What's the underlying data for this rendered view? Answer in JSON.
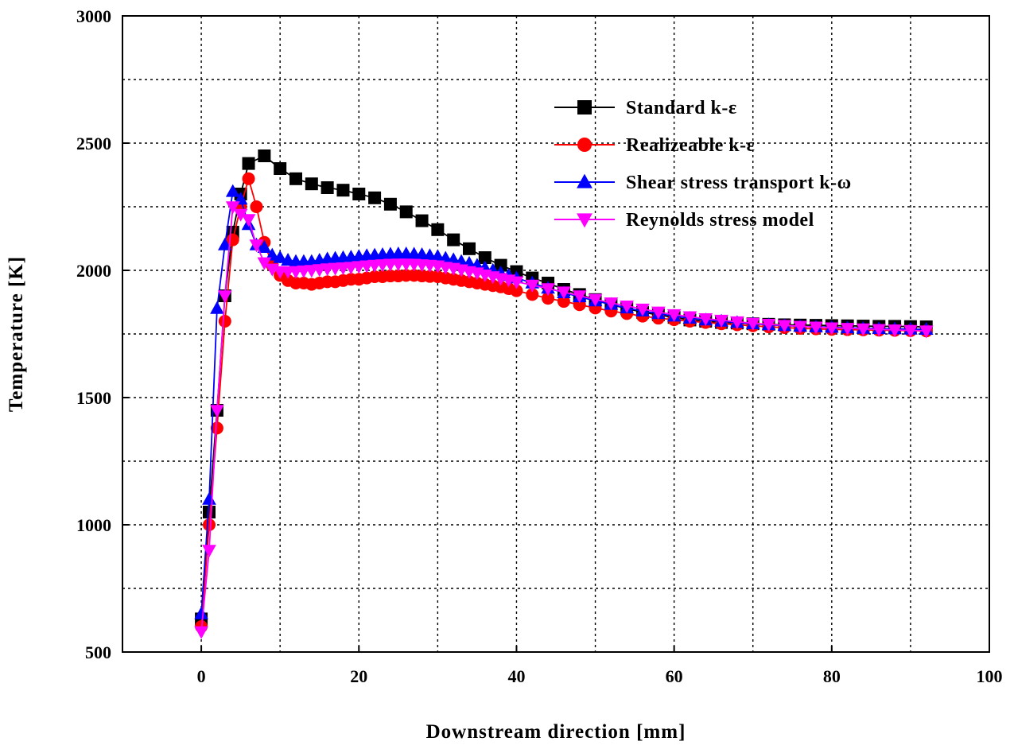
{
  "chart_data": {
    "type": "line",
    "title": "",
    "xlabel": "Downstream direction [mm]",
    "ylabel": "Temperature [K]",
    "xlim": [
      -10,
      100
    ],
    "ylim": [
      500,
      3000
    ],
    "xticks": [
      0,
      20,
      40,
      60,
      80,
      100
    ],
    "yticks": [
      500,
      1000,
      1500,
      2000,
      2500,
      3000
    ],
    "grid": true,
    "legend_position": "top-right",
    "series": [
      {
        "name": "Standard k-ε",
        "color": "#000000",
        "marker": "square",
        "x": [
          0,
          1,
          2,
          3,
          4,
          5,
          6,
          8,
          10,
          12,
          14,
          16,
          18,
          20,
          22,
          24,
          26,
          28,
          30,
          32,
          34,
          36,
          38,
          40,
          42,
          44,
          46,
          48,
          50,
          52,
          54,
          56,
          58,
          60,
          62,
          64,
          66,
          68,
          70,
          72,
          74,
          76,
          78,
          80,
          82,
          84,
          86,
          88,
          90,
          92
        ],
        "y": [
          630,
          1050,
          1450,
          1900,
          2150,
          2300,
          2420,
          2450,
          2400,
          2360,
          2340,
          2325,
          2315,
          2300,
          2285,
          2260,
          2230,
          2195,
          2160,
          2120,
          2085,
          2050,
          2020,
          1995,
          1970,
          1950,
          1925,
          1905,
          1885,
          1865,
          1850,
          1835,
          1825,
          1815,
          1805,
          1800,
          1795,
          1793,
          1790,
          1788,
          1786,
          1785,
          1784,
          1783,
          1782,
          1781,
          1780,
          1780,
          1779,
          1778
        ]
      },
      {
        "name": "Realizeable k-ε",
        "color": "#ff0000",
        "marker": "circle",
        "x": [
          0,
          1,
          2,
          3,
          4,
          5,
          6,
          7,
          8,
          9,
          10,
          11,
          12,
          13,
          14,
          15,
          16,
          17,
          18,
          19,
          20,
          21,
          22,
          23,
          24,
          25,
          26,
          27,
          28,
          29,
          30,
          31,
          32,
          33,
          34,
          35,
          36,
          37,
          38,
          39,
          40,
          42,
          44,
          46,
          48,
          50,
          52,
          54,
          56,
          58,
          60,
          62,
          64,
          66,
          68,
          70,
          72,
          74,
          76,
          78,
          80,
          82,
          84,
          86,
          88,
          90,
          92
        ],
        "y": [
          600,
          1000,
          1380,
          1800,
          2120,
          2250,
          2360,
          2250,
          2110,
          2020,
          1980,
          1960,
          1950,
          1950,
          1945,
          1950,
          1955,
          1955,
          1960,
          1965,
          1965,
          1970,
          1975,
          1975,
          1978,
          1978,
          1980,
          1980,
          1978,
          1976,
          1975,
          1970,
          1965,
          1960,
          1955,
          1950,
          1945,
          1940,
          1935,
          1928,
          1920,
          1905,
          1890,
          1878,
          1865,
          1852,
          1840,
          1830,
          1820,
          1812,
          1806,
          1800,
          1795,
          1790,
          1786,
          1782,
          1778,
          1775,
          1772,
          1770,
          1768,
          1767,
          1766,
          1765,
          1764,
          1763,
          1762
        ]
      },
      {
        "name": "Shear stress transport k-ω",
        "color": "#0000ff",
        "marker": "triangle-up",
        "x": [
          0,
          1,
          2,
          3,
          4,
          5,
          6,
          7,
          8,
          9,
          10,
          11,
          12,
          13,
          14,
          15,
          16,
          17,
          18,
          19,
          20,
          21,
          22,
          23,
          24,
          25,
          26,
          27,
          28,
          29,
          30,
          31,
          32,
          33,
          34,
          35,
          36,
          37,
          38,
          39,
          40,
          42,
          44,
          46,
          48,
          50,
          52,
          54,
          56,
          58,
          60,
          62,
          64,
          66,
          68,
          70,
          72,
          74,
          76,
          78,
          80,
          82,
          84,
          86,
          88,
          90,
          92
        ],
        "y": [
          650,
          1100,
          1850,
          2100,
          2310,
          2280,
          2180,
          2100,
          2090,
          2060,
          2050,
          2040,
          2035,
          2035,
          2035,
          2040,
          2045,
          2048,
          2050,
          2052,
          2055,
          2058,
          2060,
          2062,
          2064,
          2065,
          2065,
          2064,
          2062,
          2058,
          2055,
          2048,
          2042,
          2035,
          2028,
          2020,
          2010,
          2000,
          1990,
          1980,
          1970,
          1950,
          1930,
          1912,
          1896,
          1880,
          1866,
          1852,
          1840,
          1830,
          1820,
          1812,
          1805,
          1800,
          1795,
          1790,
          1786,
          1783,
          1780,
          1778,
          1776,
          1774,
          1772,
          1771,
          1770,
          1769,
          1768
        ]
      },
      {
        "name": "Reynolds stress model",
        "color": "#ff00ff",
        "marker": "triangle-down",
        "x": [
          0,
          1,
          2,
          3,
          4,
          5,
          6,
          7,
          8,
          9,
          10,
          11,
          12,
          13,
          14,
          15,
          16,
          17,
          18,
          19,
          20,
          21,
          22,
          23,
          24,
          25,
          26,
          27,
          28,
          29,
          30,
          31,
          32,
          33,
          34,
          35,
          36,
          37,
          38,
          39,
          40,
          42,
          44,
          46,
          48,
          50,
          52,
          54,
          56,
          58,
          60,
          62,
          64,
          66,
          68,
          70,
          72,
          74,
          76,
          78,
          80,
          82,
          84,
          86,
          88,
          90,
          92
        ],
        "y": [
          580,
          900,
          1450,
          1900,
          2250,
          2220,
          2200,
          2100,
          2030,
          2005,
          1995,
          1995,
          1995,
          1998,
          2000,
          2003,
          2006,
          2008,
          2010,
          2012,
          2015,
          2018,
          2020,
          2022,
          2024,
          2025,
          2025,
          2024,
          2022,
          2020,
          2018,
          2012,
          2008,
          2002,
          1995,
          1990,
          1982,
          1975,
          1968,
          1962,
          1955,
          1942,
          1928,
          1915,
          1900,
          1886,
          1872,
          1860,
          1848,
          1836,
          1826,
          1818,
          1810,
          1804,
          1798,
          1792,
          1788,
          1784,
          1780,
          1777,
          1774,
          1772,
          1770,
          1768,
          1766,
          1764,
          1762
        ]
      }
    ]
  }
}
